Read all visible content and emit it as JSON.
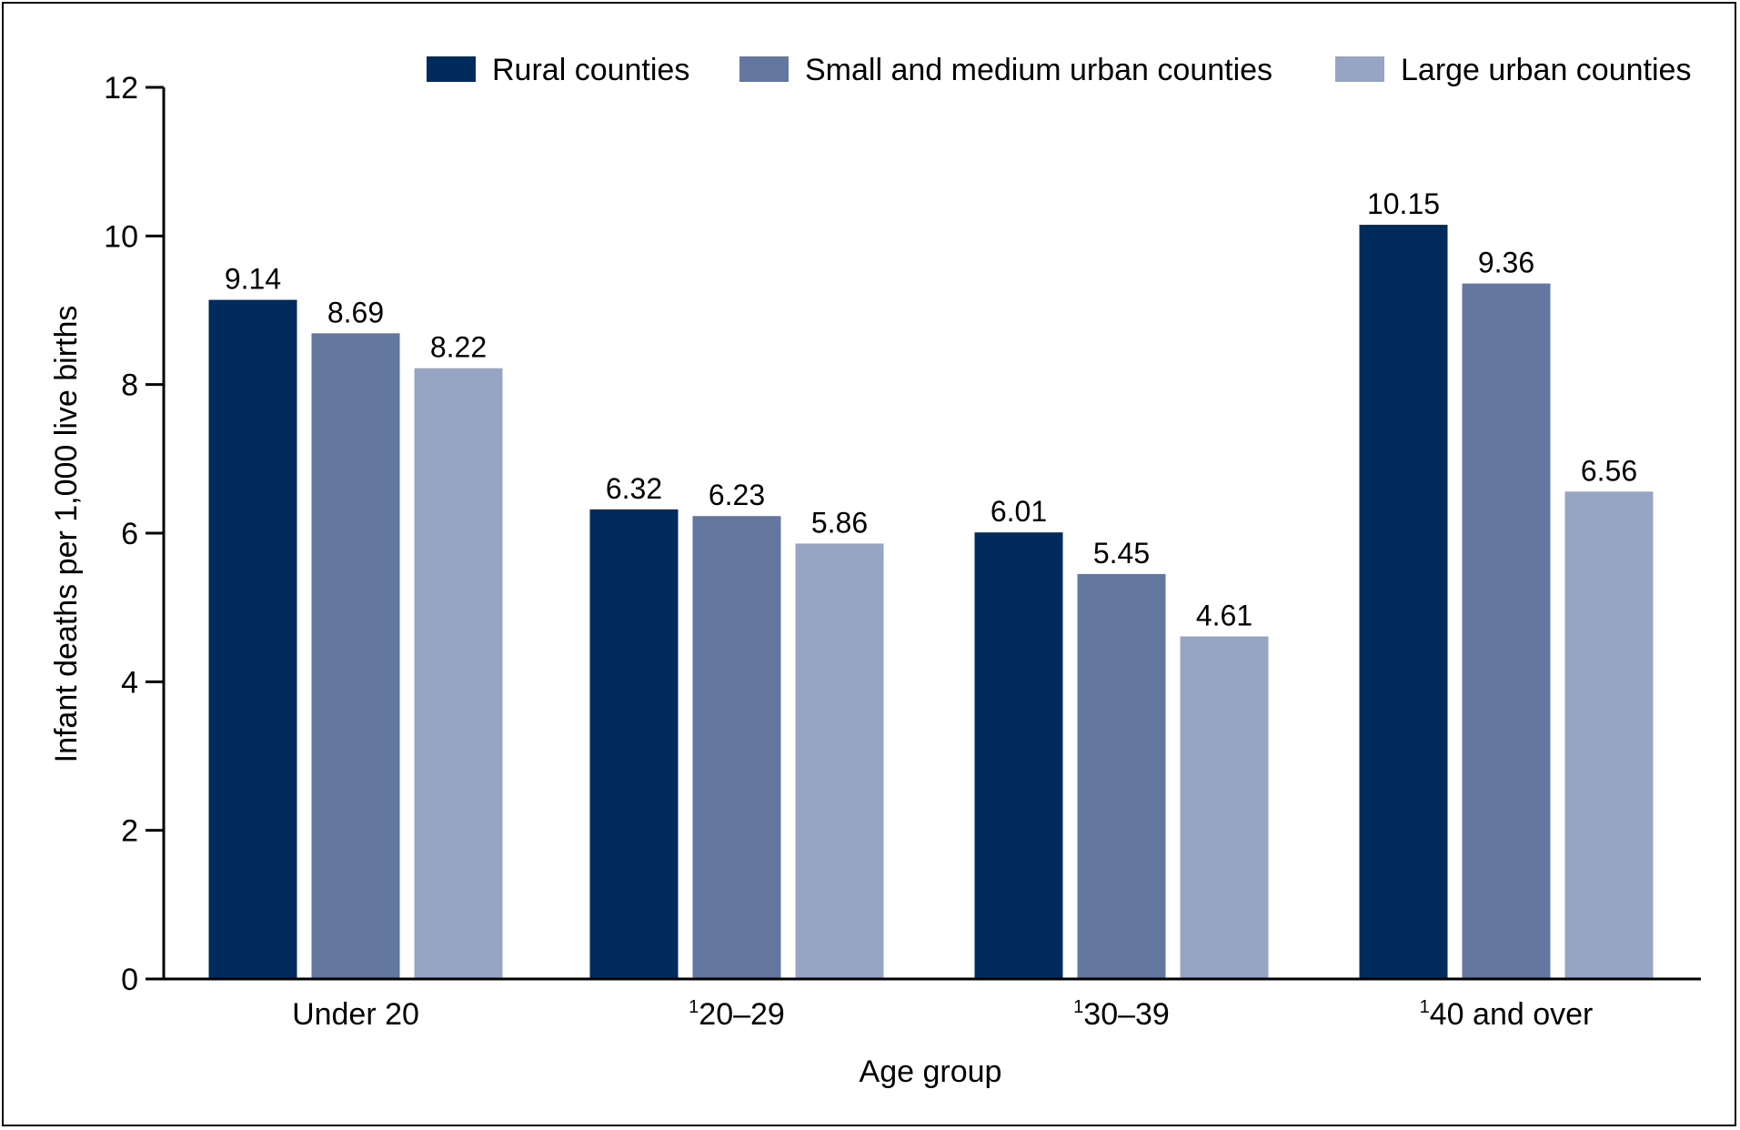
{
  "chart_data": {
    "type": "bar",
    "categories": [
      "Under 20",
      "20–29",
      "30–39",
      "40 and over"
    ],
    "category_footnotes": [
      "",
      "1",
      "1",
      "1"
    ],
    "series": [
      {
        "name": "Rural counties",
        "color": "#002b5c",
        "values": [
          9.14,
          6.32,
          6.01,
          10.15
        ]
      },
      {
        "name": "Small and medium urban counties",
        "color": "#63779f",
        "values": [
          8.69,
          6.23,
          5.45,
          9.36
        ]
      },
      {
        "name": "Large urban counties",
        "color": "#97a5c4",
        "values": [
          8.22,
          5.86,
          4.61,
          6.56
        ]
      }
    ],
    "data_labels": [
      [
        "9.14",
        "6.32",
        "6.01",
        "10.15"
      ],
      [
        "8.69",
        "6.23",
        "5.45",
        "9.36"
      ],
      [
        "8.22",
        "5.86",
        "4.61",
        "6.56"
      ]
    ],
    "xlabel": "Age group",
    "ylabel": "Infant deaths per 1,000 live births",
    "ylim": [
      0,
      12
    ],
    "yticks": [
      0,
      2,
      4,
      6,
      8,
      10,
      12
    ],
    "ytick_labels": [
      "0",
      "2",
      "4",
      "6",
      "8",
      "10",
      "12"
    ],
    "grid": false,
    "legend_position": "top"
  }
}
